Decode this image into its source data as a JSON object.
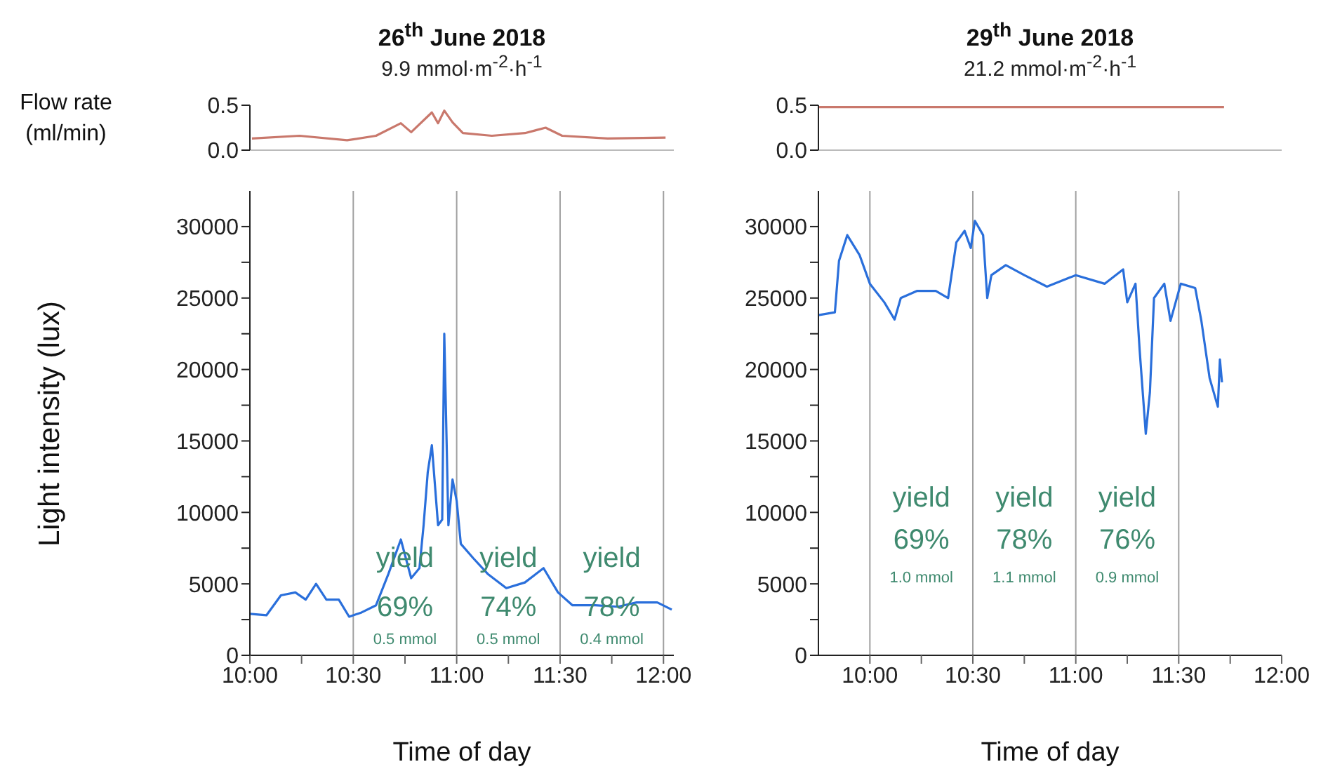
{
  "chart_data": [
    {
      "type": "line",
      "title": "26$^{th}$ June 2018",
      "subtitle": "9.9 mmol·m$^{-2}$·h$^{-1}$",
      "ylabel": "Flow rate (ml/min)",
      "xlim": [
        10,
        12.05
      ],
      "ylim": [
        0,
        0.5
      ],
      "yticks": [
        {
          "value": 0,
          "label": "0.0"
        },
        {
          "value": 0.5,
          "label": "0.5"
        }
      ],
      "tick_labels": "y",
      "x": [
        10.01,
        10.24,
        10.47,
        10.61,
        10.73,
        10.78,
        10.88,
        10.91,
        10.94,
        10.98,
        11.03,
        11.17,
        11.33,
        11.43,
        11.51,
        11.73,
        12.01
      ],
      "series": [
        {
          "color": "#c9786c",
          "values": [
            0.13,
            0.16,
            0.11,
            0.16,
            0.3,
            0.2,
            0.42,
            0.3,
            0.44,
            0.31,
            0.19,
            0.16,
            0.19,
            0.25,
            0.16,
            0.13,
            0.14
          ]
        }
      ]
    },
    {
      "type": "line",
      "title": "29$^{th}$ June 2018",
      "subtitle": "21.2 mmol·m$^{-2}$·h$^{-1}$",
      "xlim": [
        9.75,
        12
      ],
      "ylim": [
        0,
        0.5
      ],
      "yticks": [
        {
          "value": 0,
          "label": "0.0"
        },
        {
          "value": 0.5,
          "label": "0.5"
        }
      ],
      "tick_labels": "y",
      "x": [
        9.75,
        11.72
      ],
      "series": [
        {
          "color": "#c9786c",
          "values": [
            0.48,
            0.48
          ]
        }
      ]
    },
    {
      "type": "line",
      "xlabel": "Time of day",
      "ylabel": "Light intensity (lux)",
      "xlim": [
        10,
        12.05
      ],
      "ylim": [
        0,
        32500
      ],
      "xticks": [
        {
          "value": 10,
          "label": "10:00"
        },
        {
          "value": 10.25,
          "label": null
        },
        {
          "value": 10.5,
          "label": "10:30"
        },
        {
          "value": 10.75,
          "label": null
        },
        {
          "value": 11,
          "label": "11:00"
        },
        {
          "value": 11.25,
          "label": null
        },
        {
          "value": 11.5,
          "label": "11:30"
        },
        {
          "value": 11.75,
          "label": null
        },
        {
          "value": 12,
          "label": "12:00"
        }
      ],
      "yticks": [
        0,
        {
          "value": 2500,
          "label": null
        },
        5000,
        {
          "value": 7500,
          "label": null
        },
        10000,
        {
          "value": 12500,
          "label": null
        },
        15000,
        {
          "value": 17500,
          "label": null
        },
        20000,
        {
          "value": 22500,
          "label": null
        },
        25000,
        {
          "value": 27500,
          "label": null
        },
        30000
      ],
      "x": [
        10,
        10.08,
        10.15,
        10.22,
        10.27,
        10.32,
        10.37,
        10.43,
        10.48,
        10.54,
        10.61,
        10.67,
        10.73,
        10.78,
        10.82,
        10.84,
        10.86,
        10.88,
        10.91,
        10.93,
        10.94,
        10.96,
        10.98,
        11,
        11.02,
        11.08,
        11.15,
        11.24,
        11.33,
        11.42,
        11.49,
        11.56,
        11.67,
        11.78,
        11.87,
        11.97,
        12.04
      ],
      "series": [
        {
          "color": "#2a6fdb",
          "values": [
            2900,
            2800,
            4200,
            4400,
            3900,
            5000,
            3900,
            3900,
            2700,
            3000,
            3500,
            5700,
            8100,
            5400,
            6100,
            9100,
            12800,
            14700,
            9100,
            9500,
            22500,
            9100,
            12300,
            10800,
            7800,
            6800,
            5700,
            4700,
            5100,
            6100,
            4400,
            3500,
            3500,
            3400,
            3700,
            3700,
            3200
          ]
        }
      ],
      "ref_lines": [
        {
          "axis": "x",
          "value": 10.5,
          "color": "#a0a0a0"
        },
        {
          "axis": "x",
          "value": 11,
          "color": "#a0a0a0"
        },
        {
          "axis": "x",
          "value": 11.5,
          "color": "#a0a0a0"
        },
        {
          "axis": "x",
          "value": 12,
          "color": "#a0a0a0"
        }
      ],
      "annotations": [
        "yield",
        "69%",
        "0.5 mmol",
        "yield",
        "74%",
        "0.5 mmol",
        "yield",
        "78%",
        "0.4 mmol"
      ]
    },
    {
      "type": "line",
      "xlabel": "Time of day",
      "xlim": [
        9.75,
        12
      ],
      "ylim": [
        0,
        32500
      ],
      "xticks": [
        {
          "value": 10,
          "label": "10:00"
        },
        {
          "value": 10.25,
          "label": null
        },
        {
          "value": 10.5,
          "label": "10:30"
        },
        {
          "value": 10.75,
          "label": null
        },
        {
          "value": 11,
          "label": "11:00"
        },
        {
          "value": 11.25,
          "label": null
        },
        {
          "value": 11.5,
          "label": "11:30"
        },
        {
          "value": 11.75,
          "label": null
        },
        {
          "value": 12,
          "label": "12:00"
        }
      ],
      "yticks": [
        0,
        {
          "value": 2500,
          "label": null
        },
        5000,
        {
          "value": 7500,
          "label": null
        },
        10000,
        {
          "value": 12500,
          "label": null
        },
        15000,
        {
          "value": 17500,
          "label": null
        },
        20000,
        {
          "value": 22500,
          "label": null
        },
        25000,
        {
          "value": 27500,
          "label": null
        },
        30000
      ],
      "x": [
        9.75,
        9.83,
        9.85,
        9.89,
        9.95,
        10,
        10.07,
        10.12,
        10.15,
        10.23,
        10.32,
        10.38,
        10.42,
        10.46,
        10.49,
        10.51,
        10.55,
        10.57,
        10.59,
        10.66,
        10.75,
        10.86,
        11,
        11.14,
        11.23,
        11.25,
        11.29,
        11.31,
        11.34,
        11.36,
        11.38,
        11.43,
        11.46,
        11.51,
        11.58,
        11.61,
        11.65,
        11.69,
        11.7,
        11.71
      ],
      "series": [
        {
          "color": "#2a6fdb",
          "values": [
            23800,
            24000,
            27600,
            29400,
            28000,
            26000,
            24700,
            23500,
            25000,
            25500,
            25500,
            25000,
            28900,
            29700,
            28500,
            30400,
            29400,
            25000,
            26600,
            27300,
            26600,
            25800,
            26600,
            26000,
            27000,
            24700,
            26000,
            21400,
            15500,
            18400,
            25000,
            26000,
            23400,
            26000,
            25700,
            23400,
            19400,
            17400,
            20700,
            19100
          ]
        }
      ],
      "ref_lines": [
        {
          "axis": "x",
          "value": 10,
          "color": "#a0a0a0"
        },
        {
          "axis": "x",
          "value": 10.5,
          "color": "#a0a0a0"
        },
        {
          "axis": "x",
          "value": 11,
          "color": "#a0a0a0"
        },
        {
          "axis": "x",
          "value": 11.5,
          "color": "#a0a0a0"
        }
      ],
      "annotations": [
        "yield",
        "69%",
        "1.0 mmol",
        "yield",
        "78%",
        "1.1 mmol",
        "yield",
        "76%",
        "0.9 mmol"
      ]
    }
  ]
}
